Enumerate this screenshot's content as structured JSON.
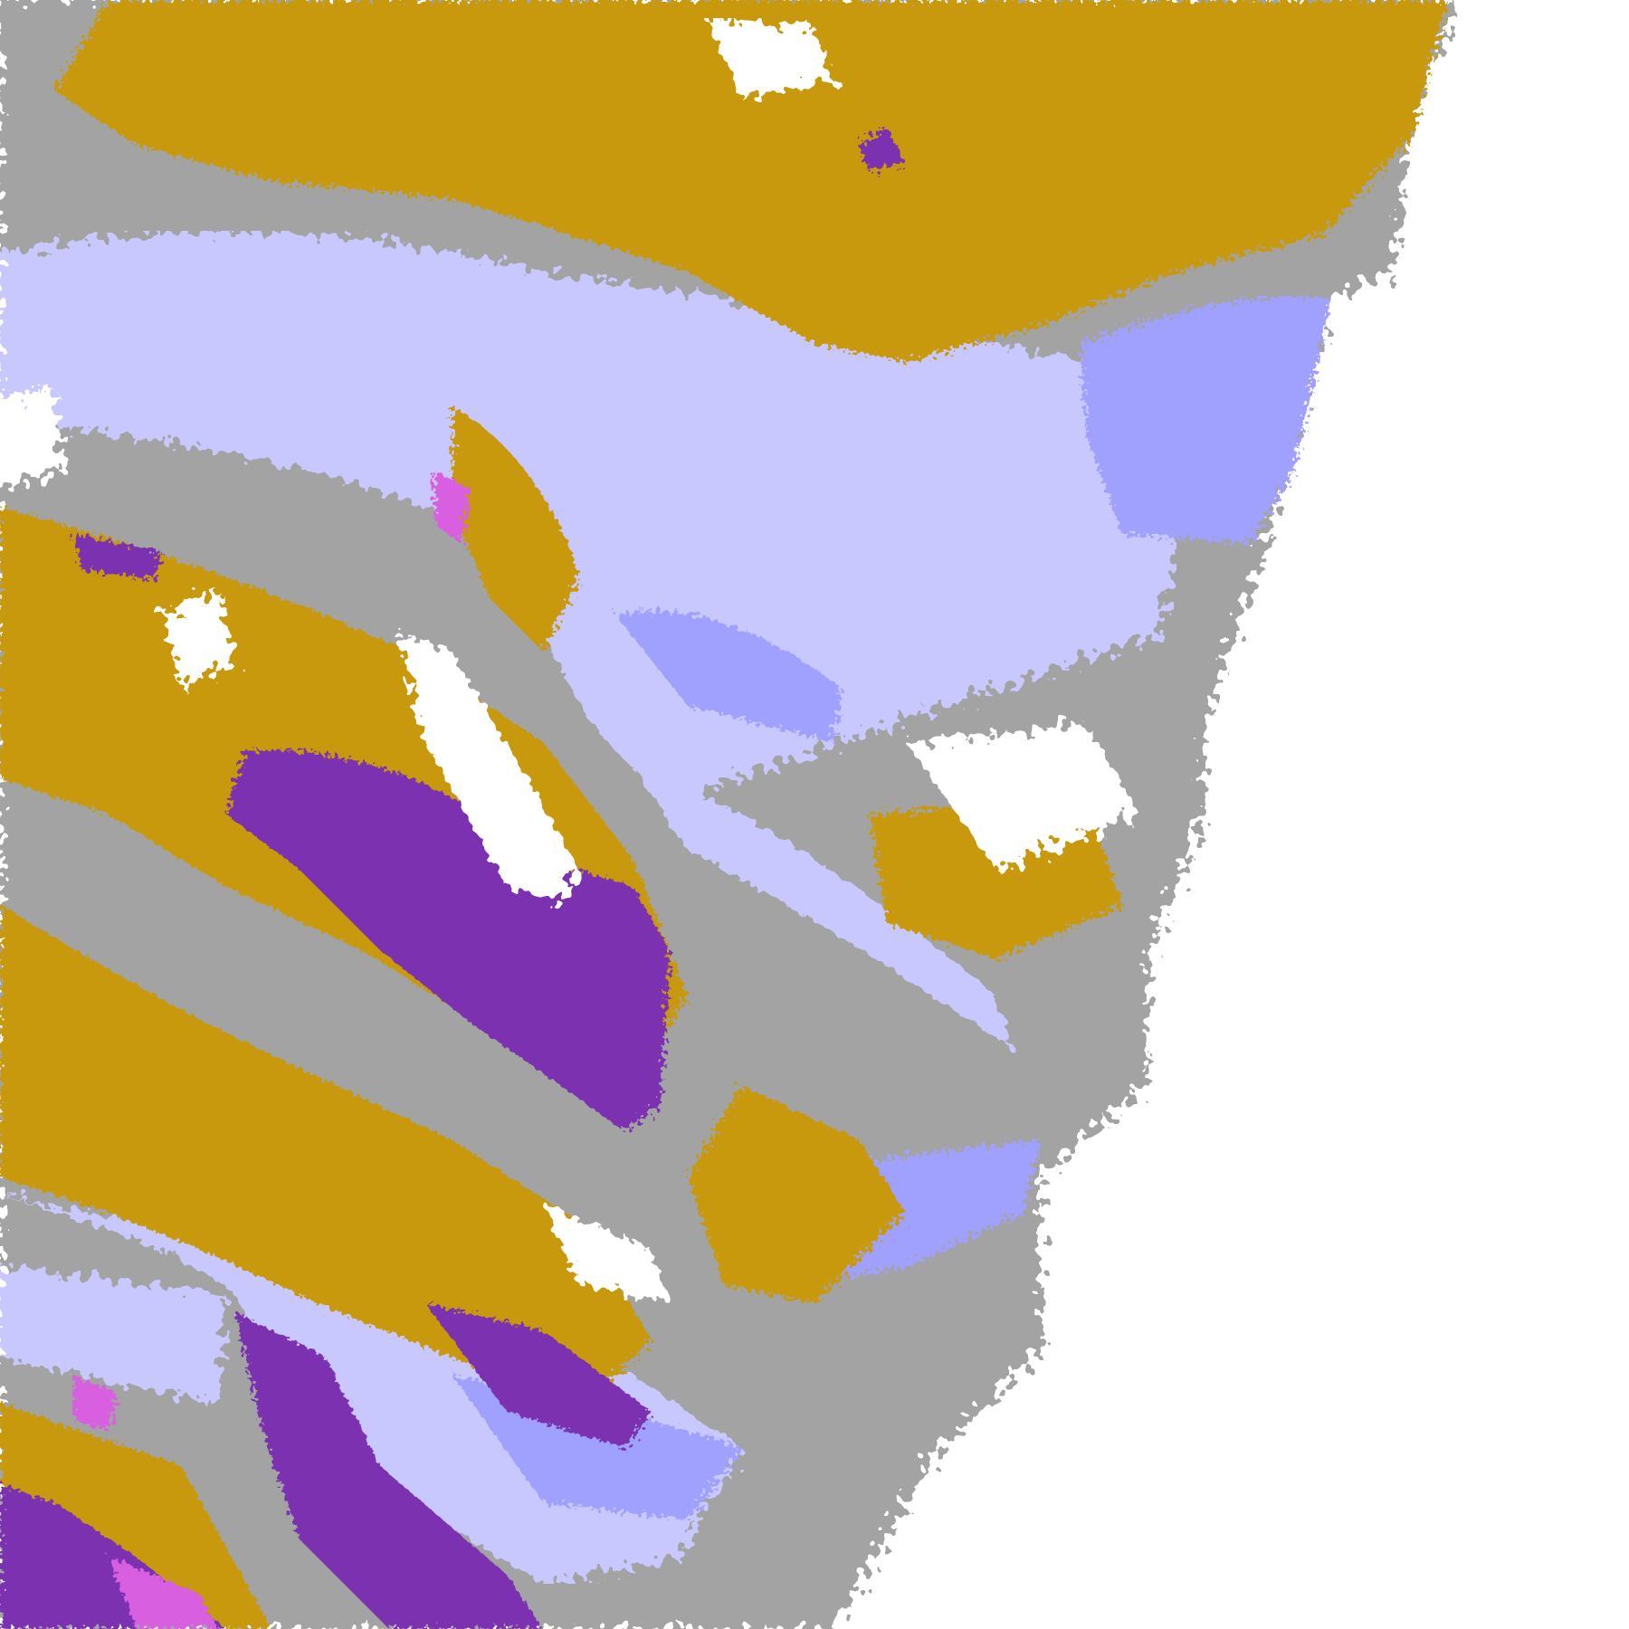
{
  "map": {
    "colors": {
      "gold": "#C9990A",
      "purple": "#7B30B0",
      "gray": "#A3A3A3",
      "lavender": "#C8C8FF",
      "periwinkle": "#A0A0FF",
      "magenta": "#D860E0",
      "background": "#FFFFFF"
    },
    "layers": [
      "gray",
      "lavender",
      "periwinkle",
      "gold",
      "purple",
      "magenta"
    ]
  }
}
